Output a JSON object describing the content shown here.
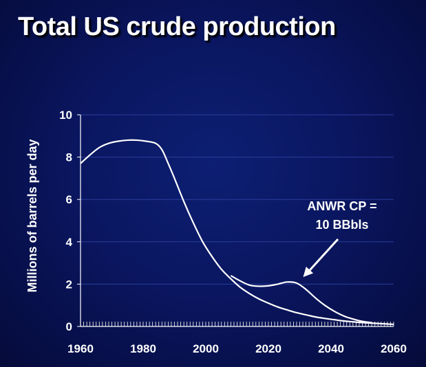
{
  "title": "Total US crude production",
  "chart_data": {
    "type": "line",
    "title": "Total US crude production",
    "xlabel": "",
    "ylabel": "Millions of barrels per day",
    "xlim": [
      1960,
      2060
    ],
    "ylim": [
      0,
      10
    ],
    "x_ticks": [
      "1960",
      "1980",
      "2000",
      "2020",
      "2040",
      "2060"
    ],
    "y_ticks": [
      "0",
      "2",
      "4",
      "6",
      "8",
      "10"
    ],
    "grid": true,
    "series": [
      {
        "color": "#ffffff",
        "x": [
          1960,
          1963,
          1966,
          1969,
          1972,
          1975,
          1978,
          1981,
          1984,
          1986,
          1988,
          1990,
          1993,
          1996,
          1999,
          2002,
          2005,
          2008,
          2011,
          2014,
          2017,
          2020,
          2023,
          2026,
          2029,
          2032,
          2035,
          2038,
          2041,
          2044,
          2047,
          2050,
          2055,
          2060
        ],
        "y": [
          7.7,
          8.1,
          8.45,
          8.65,
          8.75,
          8.8,
          8.8,
          8.75,
          8.65,
          8.35,
          7.7,
          7.0,
          5.9,
          4.9,
          4.0,
          3.3,
          2.7,
          2.25,
          1.85,
          1.55,
          1.3,
          1.1,
          0.92,
          0.78,
          0.65,
          0.55,
          0.45,
          0.38,
          0.32,
          0.26,
          0.22,
          0.18,
          0.14,
          0.1
        ]
      },
      {
        "color": "#ffffff",
        "x": [
          2008,
          2011,
          2014,
          2017,
          2020,
          2023,
          2026,
          2029,
          2032,
          2035,
          2038,
          2041,
          2044,
          2047,
          2050,
          2053
        ],
        "y": [
          2.4,
          2.15,
          1.95,
          1.9,
          1.92,
          2.0,
          2.1,
          2.05,
          1.75,
          1.35,
          1.0,
          0.72,
          0.5,
          0.35,
          0.24,
          0.18
        ]
      }
    ],
    "annotations": [
      {
        "lines": [
          "ANWR CP =",
          "10 BBbls"
        ],
        "arrow_to": [
          2030,
          2.4
        ]
      }
    ]
  }
}
